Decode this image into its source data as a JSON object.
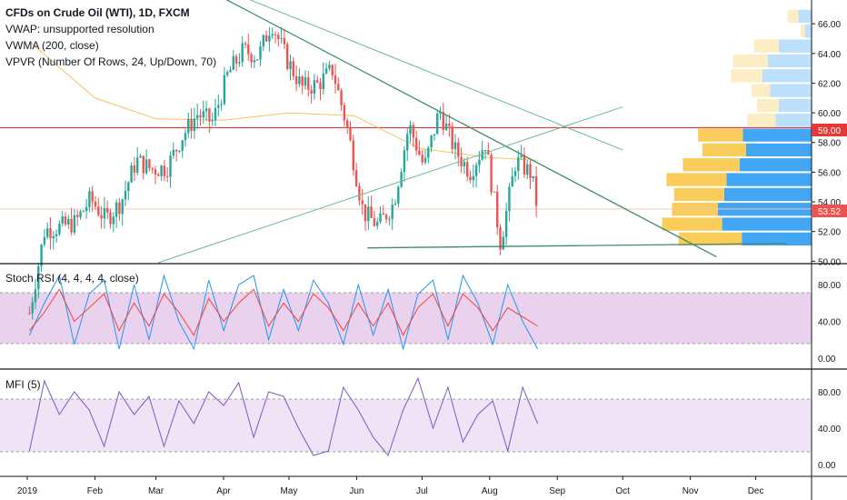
{
  "legend": {
    "title": "CFDs on Crude Oil (WTI), 1D, FXCM",
    "line2": "VWAP: unsupported resolution",
    "line3": "VWMA (200, close)",
    "line4": "VPVR (Number Of Rows, 24, Up/Down, 70)"
  },
  "price_labels": {
    "hline": "59.00",
    "last": "53.52"
  },
  "panes": {
    "stoch_label": "Stoch RSI (4, 4, 4, 4, close)",
    "mfi_label": "MFI (5)"
  },
  "colors": {
    "up": "#26a69a",
    "down": "#ef5350",
    "hline": "#e53935",
    "trend": "#3d8c6e",
    "stoch_k": "#2196f3",
    "stoch_d": "#f44336",
    "mfi": "#7e57c2",
    "band": "#e1bee7",
    "vwma": "#f5c45f"
  },
  "chart_data": [
    {
      "type": "candlestick",
      "title": "CFDs on Crude Oil (WTI), 1D, FXCM",
      "x_tick_labels": [
        "2019",
        "Feb",
        "Mar",
        "Apr",
        "May",
        "Jun",
        "Jul",
        "Aug",
        "Sep",
        "Oct",
        "Nov",
        "Dec"
      ],
      "y_tick_labels": [
        "50.00",
        "52.00",
        "54.00",
        "56.00",
        "58.00",
        "60.00",
        "62.00",
        "64.00",
        "66.00"
      ],
      "ylim": [
        49.9,
        67.6
      ],
      "last_price": 53.52,
      "horizontal_line": 59.0,
      "series_close": [
        {
          "date": "2019-01-02",
          "value": 46.5
        },
        {
          "date": "2019-01-09",
          "value": 52.1
        },
        {
          "date": "2019-01-16",
          "value": 52.3
        },
        {
          "date": "2019-01-23",
          "value": 52.6
        },
        {
          "date": "2019-01-30",
          "value": 54.2
        },
        {
          "date": "2019-02-06",
          "value": 52.8
        },
        {
          "date": "2019-02-13",
          "value": 54.0
        },
        {
          "date": "2019-02-20",
          "value": 56.8
        },
        {
          "date": "2019-02-27",
          "value": 56.2
        },
        {
          "date": "2019-03-06",
          "value": 56.3
        },
        {
          "date": "2019-03-13",
          "value": 58.4
        },
        {
          "date": "2019-03-20",
          "value": 59.9
        },
        {
          "date": "2019-03-27",
          "value": 59.4
        },
        {
          "date": "2019-04-03",
          "value": 62.6
        },
        {
          "date": "2019-04-10",
          "value": 64.2
        },
        {
          "date": "2019-04-17",
          "value": 63.8
        },
        {
          "date": "2019-04-23",
          "value": 66.1
        },
        {
          "date": "2019-04-30",
          "value": 63.6
        },
        {
          "date": "2019-05-07",
          "value": 61.7
        },
        {
          "date": "2019-05-14",
          "value": 61.9
        },
        {
          "date": "2019-05-21",
          "value": 62.9
        },
        {
          "date": "2019-05-28",
          "value": 58.8
        },
        {
          "date": "2019-06-04",
          "value": 53.3
        },
        {
          "date": "2019-06-11",
          "value": 52.4
        },
        {
          "date": "2019-06-18",
          "value": 53.9
        },
        {
          "date": "2019-06-25",
          "value": 59.2
        },
        {
          "date": "2019-07-02",
          "value": 56.3
        },
        {
          "date": "2019-07-09",
          "value": 60.2
        },
        {
          "date": "2019-07-16",
          "value": 57.5
        },
        {
          "date": "2019-07-23",
          "value": 56.0
        },
        {
          "date": "2019-07-30",
          "value": 58.0
        },
        {
          "date": "2019-08-06",
          "value": 51.2
        },
        {
          "date": "2019-08-13",
          "value": 56.8
        },
        {
          "date": "2019-08-20",
          "value": 55.9
        },
        {
          "date": "2019-08-23",
          "value": 53.5
        }
      ],
      "vwma": [
        {
          "date": "2019-01-02",
          "value": 64.8
        },
        {
          "date": "2019-02-01",
          "value": 61.0
        },
        {
          "date": "2019-03-01",
          "value": 59.6
        },
        {
          "date": "2019-04-01",
          "value": 59.5
        },
        {
          "date": "2019-05-01",
          "value": 60.0
        },
        {
          "date": "2019-05-31",
          "value": 59.8
        },
        {
          "date": "2019-06-30",
          "value": 57.6
        },
        {
          "date": "2019-07-31",
          "value": 57.0
        },
        {
          "date": "2019-08-23",
          "value": 56.8
        }
      ],
      "volume_profile": [
        {
          "price": 51.5,
          "up": 5.8,
          "down": 6.4
        },
        {
          "price": 52.5,
          "up": 5.5,
          "down": 8.2
        },
        {
          "price": 53.5,
          "up": 4.2,
          "down": 8.6
        },
        {
          "price": 54.5,
          "up": 4.6,
          "down": 8.0
        },
        {
          "price": 55.5,
          "up": 5.5,
          "down": 7.8
        },
        {
          "price": 56.5,
          "up": 5.2,
          "down": 6.6
        },
        {
          "price": 57.5,
          "up": 4.0,
          "down": 6.0
        },
        {
          "price": 58.5,
          "up": 4.1,
          "down": 6.3
        },
        {
          "price": 59.5,
          "up": 2.6,
          "down": 3.3
        },
        {
          "price": 60.5,
          "up": 2.0,
          "down": 3.0
        },
        {
          "price": 61.5,
          "up": 1.7,
          "down": 3.8
        },
        {
          "price": 62.5,
          "up": 2.9,
          "down": 4.5
        },
        {
          "price": 63.5,
          "up": 3.2,
          "down": 4.0
        },
        {
          "price": 64.5,
          "up": 2.3,
          "down": 3.0
        },
        {
          "price": 65.5,
          "up": 0.4,
          "down": 0.6
        },
        {
          "price": 66.5,
          "up": 1.0,
          "down": 1.2
        }
      ]
    },
    {
      "type": "line",
      "title": "Stoch RSI (4, 4, 4, 4, close)",
      "y_tick_labels": [
        "0.00",
        "40.00",
        "80.00"
      ],
      "ylim": [
        -3,
        100
      ],
      "band": [
        20,
        80
      ],
      "series": [
        {
          "values_k": [
            25,
            60,
            90,
            15,
            70,
            85,
            10,
            80,
            20,
            90,
            40,
            10,
            85,
            30,
            80,
            90,
            20,
            75,
            30,
            85,
            60,
            15,
            80,
            25,
            75,
            10,
            70,
            85,
            20,
            90,
            60,
            15,
            80,
            40,
            10
          ]
        },
        {
          "values_d": [
            30,
            50,
            75,
            40,
            55,
            70,
            30,
            60,
            35,
            70,
            50,
            25,
            65,
            40,
            60,
            75,
            35,
            60,
            40,
            70,
            55,
            30,
            60,
            35,
            60,
            25,
            55,
            70,
            35,
            70,
            55,
            30,
            55,
            45,
            35
          ]
        }
      ]
    },
    {
      "type": "line",
      "title": "MFI (5)",
      "y_tick_labels": [
        "0.00",
        "40.00",
        "80.00"
      ],
      "ylim": [
        -5,
        105
      ],
      "band": [
        20,
        80
      ],
      "series": [
        {
          "values": [
            15,
            92,
            55,
            80,
            60,
            20,
            80,
            55,
            75,
            20,
            70,
            45,
            80,
            65,
            90,
            30,
            80,
            75,
            40,
            10,
            15,
            85,
            60,
            30,
            10,
            60,
            95,
            40,
            85,
            25,
            55,
            70,
            15,
            85,
            45
          ]
        }
      ]
    }
  ]
}
